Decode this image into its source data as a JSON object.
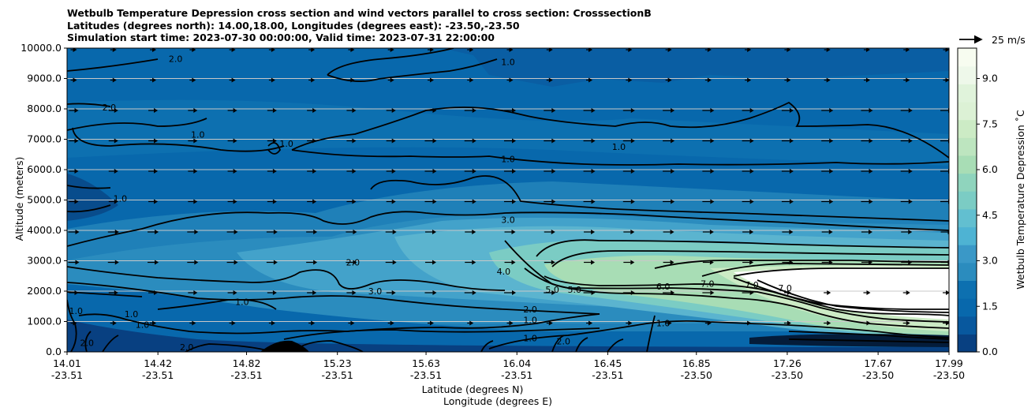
{
  "title_lines": [
    "Wetbulb Temperature Depression cross section and wind vectors parallel to cross section: CrosssectionB",
    "Latitudes (degrees north): 14.00,18.00, Longitudes (degrees east): -23.50,-23.50",
    "Simulation start time: 2023-07-30 00:00:00, Valid time: 2023-07-31 22:00:00"
  ],
  "chart_data": {
    "type": "heatmap",
    "description_type": "filled contour cross section with contour lines and wind vectors",
    "ylabel": "Altitude (meters)",
    "xlabel_line1": "Latitude (degrees N)",
    "xlabel_line2": "Longitude (degrees E)",
    "ylim": [
      0,
      10000
    ],
    "y_ticks": [
      "0.0",
      "1000.0",
      "2000.0",
      "3000.0",
      "4000.0",
      "5000.0",
      "6000.0",
      "7000.0",
      "8000.0",
      "9000.0",
      "10000.0"
    ],
    "x_ticks": [
      {
        "lat": "14.01",
        "lon": "-23.51"
      },
      {
        "lat": "14.42",
        "lon": "-23.51"
      },
      {
        "lat": "14.82",
        "lon": "-23.51"
      },
      {
        "lat": "15.23",
        "lon": "-23.51"
      },
      {
        "lat": "15.63",
        "lon": "-23.51"
      },
      {
        "lat": "16.04",
        "lon": "-23.51"
      },
      {
        "lat": "16.45",
        "lon": "-23.51"
      },
      {
        "lat": "16.85",
        "lon": "-23.50"
      },
      {
        "lat": "17.26",
        "lon": "-23.50"
      },
      {
        "lat": "17.67",
        "lon": "-23.50"
      },
      {
        "lat": "17.99",
        "lon": "-23.50"
      }
    ],
    "grid": true,
    "colorbar": {
      "label": "Wetbulb Temperature Depression ˚C",
      "range": [
        0,
        10
      ],
      "ticks": [
        "0.0",
        "1.5",
        "3.0",
        "4.5",
        "6.0",
        "7.5",
        "9.0"
      ],
      "tick_values": [
        0,
        1.5,
        3,
        4.5,
        6,
        7.5,
        9
      ],
      "colormap": "GnBu_r"
    },
    "quiver_key": "25 m/s",
    "contour_labels": [
      {
        "text": "1.0",
        "lat": 16.0,
        "alt": 9500
      },
      {
        "text": "2.0",
        "lat": 14.5,
        "alt": 9600
      },
      {
        "text": "2.0",
        "lat": 14.2,
        "alt": 8000
      },
      {
        "text": "1.0",
        "lat": 14.6,
        "alt": 7100
      },
      {
        "text": "1.0",
        "lat": 15.0,
        "alt": 6800
      },
      {
        "text": "1.0",
        "lat": 16.0,
        "alt": 6300
      },
      {
        "text": "1.0",
        "lat": 16.5,
        "alt": 6700
      },
      {
        "text": "1.0",
        "lat": 14.25,
        "alt": 5000
      },
      {
        "text": "3.0",
        "lat": 16.0,
        "alt": 4300
      },
      {
        "text": "2.0",
        "lat": 15.3,
        "alt": 2900
      },
      {
        "text": "4.0",
        "lat": 15.98,
        "alt": 2600
      },
      {
        "text": "3.0",
        "lat": 15.4,
        "alt": 1950
      },
      {
        "text": "1.0",
        "lat": 14.8,
        "alt": 1600
      },
      {
        "text": "5.0",
        "lat": 16.2,
        "alt": 2000
      },
      {
        "text": "5.0",
        "lat": 16.3,
        "alt": 2000
      },
      {
        "text": "6.0",
        "lat": 16.7,
        "alt": 2100
      },
      {
        "text": "7.0",
        "lat": 16.9,
        "alt": 2200
      },
      {
        "text": "7.0",
        "lat": 17.1,
        "alt": 2150
      },
      {
        "text": "7.0",
        "lat": 17.25,
        "alt": 2050
      },
      {
        "text": "2.0",
        "lat": 16.1,
        "alt": 1350
      },
      {
        "text": "1.0",
        "lat": 16.1,
        "alt": 1000
      },
      {
        "text": "1.0",
        "lat": 16.1,
        "alt": 400
      },
      {
        "text": "1.0",
        "lat": 14.05,
        "alt": 1300
      },
      {
        "text": "1.0",
        "lat": 14.3,
        "alt": 1200
      },
      {
        "text": "1.0",
        "lat": 14.35,
        "alt": 850
      },
      {
        "text": "2.0",
        "lat": 14.1,
        "alt": 250
      },
      {
        "text": "2.0",
        "lat": 14.55,
        "alt": 100
      },
      {
        "text": "2.0",
        "lat": 16.25,
        "alt": 300
      },
      {
        "text": "1.0",
        "lat": 16.7,
        "alt": 900
      }
    ]
  }
}
